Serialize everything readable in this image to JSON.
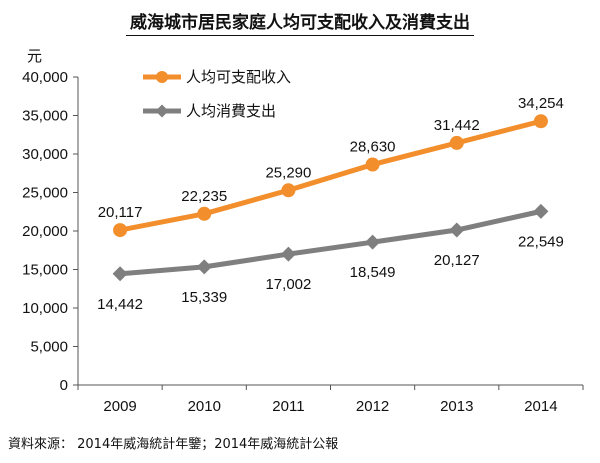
{
  "chart_data": {
    "type": "line",
    "title": "威海城市居民家庭人均可支配收入及消費支出",
    "ylabel": "元",
    "xlabel": "",
    "categories": [
      "2009",
      "2010",
      "2011",
      "2012",
      "2013",
      "2014"
    ],
    "ylim": [
      0,
      40000
    ],
    "yticks": [
      "0",
      "5,000",
      "10,000",
      "15,000",
      "20,000",
      "25,000",
      "30,000",
      "35,000",
      "40,000"
    ],
    "grid": false,
    "legend_position": "top-left",
    "series": [
      {
        "name": "人均可支配收入",
        "color": "#f28e2b",
        "marker": "circle",
        "values": [
          20117,
          22235,
          25290,
          28630,
          31442,
          34254
        ],
        "labels": [
          "20,117",
          "22,235",
          "25,290",
          "28,630",
          "31,442",
          "34,254"
        ]
      },
      {
        "name": "人均消費支出",
        "color": "#7f7f7f",
        "marker": "diamond",
        "values": [
          14442,
          15339,
          17002,
          18549,
          20127,
          22549
        ],
        "labels": [
          "14,442",
          "15,339",
          "17,002",
          "18,549",
          "20,127",
          "22,549"
        ]
      }
    ]
  },
  "source": "資料來源： 2014年威海統計年鑒；2014年威海統計公報"
}
